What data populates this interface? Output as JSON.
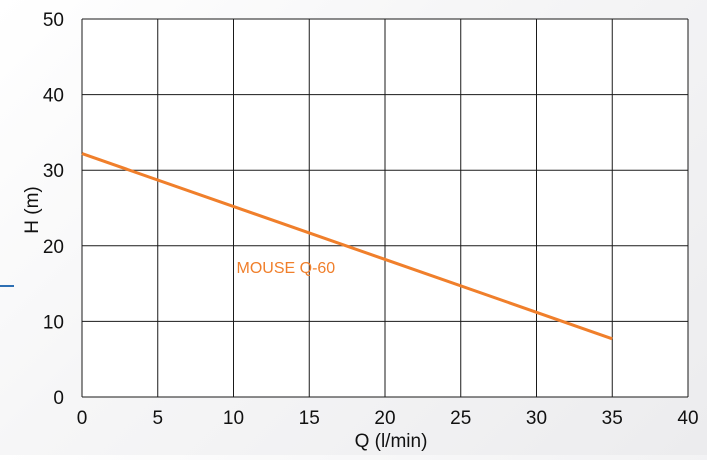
{
  "chart_data": {
    "type": "line",
    "xlabel": "Q (l/min)",
    "ylabel": "H (m)",
    "xlim": [
      0,
      40
    ],
    "ylim": [
      0,
      50
    ],
    "x_ticks": [
      0,
      5,
      10,
      15,
      20,
      25,
      30,
      35,
      40
    ],
    "y_ticks": [
      0,
      10,
      20,
      30,
      40,
      50
    ],
    "grid": true,
    "series": [
      {
        "name": "MOUSE Q-60",
        "color": "#f07f2b",
        "x": [
          0,
          35
        ],
        "y": [
          32.2,
          7.7
        ]
      }
    ]
  },
  "colors": {
    "line": "#f07f2b",
    "grid": "#1a1a1a",
    "accent": "#2d6fb3"
  }
}
